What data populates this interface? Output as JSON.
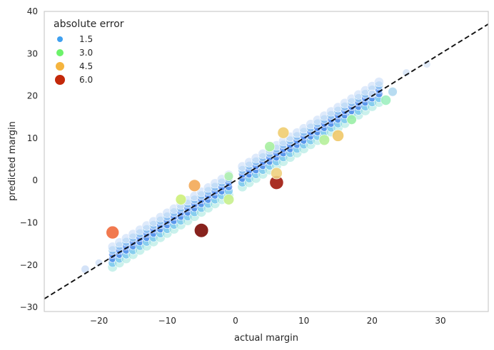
{
  "chart_data": {
    "type": "scatter",
    "title": "",
    "xlabel": "actual margin",
    "ylabel": "predicted margin",
    "xlim": [
      -28,
      37
    ],
    "ylim": [
      -31,
      40
    ],
    "x_ticks": [
      -20,
      -10,
      0,
      10,
      20,
      30
    ],
    "y_ticks": [
      -30,
      -20,
      -10,
      0,
      10,
      20,
      30,
      40
    ],
    "grid": false,
    "reference_line": {
      "style": "dashed",
      "color": "#000000",
      "slope": 1,
      "intercept": 0
    },
    "legend": {
      "title": "absolute error",
      "placement": "top-left",
      "entries": [
        {
          "label": "1.5",
          "value": 1.5,
          "color": "#3fa0f0"
        },
        {
          "label": "3.0",
          "value": 3.0,
          "color": "#6cf26a"
        },
        {
          "label": "4.5",
          "value": 4.5,
          "color": "#f5b43e"
        },
        {
          "label": "6.0",
          "value": 6.0,
          "color": "#c3280a"
        }
      ]
    },
    "outliers": [
      {
        "x": -18,
        "y": -12.3,
        "error": 5.7,
        "color": "#f06a3c"
      },
      {
        "x": -5,
        "y": -11.8,
        "error": 6.8,
        "color": "#7a0a04"
      },
      {
        "x": 6,
        "y": -0.5,
        "error": 6.5,
        "color": "#a0180c"
      },
      {
        "x": -6,
        "y": -1.2,
        "error": 4.8,
        "color": "#f3a957"
      },
      {
        "x": 7,
        "y": 11.3,
        "error": 4.3,
        "color": "#f0cd70"
      },
      {
        "x": 15,
        "y": 10.6,
        "error": 4.4,
        "color": "#f0c868"
      },
      {
        "x": 6,
        "y": 1.7,
        "error": 4.3,
        "color": "#f0d080"
      },
      {
        "x": -8,
        "y": -4.5,
        "error": 3.5,
        "color": "#cdf07a"
      },
      {
        "x": 5,
        "y": 8,
        "error": 3.0,
        "color": "#a8f0a0"
      },
      {
        "x": 13,
        "y": 9.6,
        "error": 3.4,
        "color": "#b6f09a"
      },
      {
        "x": 17,
        "y": 14.4,
        "error": 2.6,
        "color": "#9ef0a8"
      },
      {
        "x": -1,
        "y": -4.5,
        "error": 3.5,
        "color": "#c8f08c"
      },
      {
        "x": -1,
        "y": 1.0,
        "error": 2.0,
        "color": "#b0f0b0"
      },
      {
        "x": 22,
        "y": 19,
        "error": 3.0,
        "color": "#9ff0c0"
      },
      {
        "x": -22,
        "y": -21,
        "error": 1.0,
        "color": "#cfe0f7"
      },
      {
        "x": -20,
        "y": -19.5,
        "error": 0.5,
        "color": "#d5e3f7"
      },
      {
        "x": 28,
        "y": 27.5,
        "error": 0.5,
        "color": "#dde8f7"
      },
      {
        "x": 25,
        "y": 25.5,
        "error": 0.5,
        "color": "#d8e5f7"
      },
      {
        "x": 20,
        "y": 20.5,
        "error": 0.5,
        "color": "#c6dcf7"
      },
      {
        "x": 23,
        "y": 21,
        "error": 2.0,
        "color": "#b0d8f0"
      }
    ],
    "band": {
      "x_min": -18,
      "x_max": 21,
      "x_skip": [
        0
      ],
      "y_offsets": [
        -2.5,
        -1.5,
        -0.5,
        0.5,
        1.5,
        2.3
      ],
      "colors": [
        "#a6e8e0",
        "#5ab8f0",
        "#2f6fe6",
        "#3b7ff0",
        "#8fc8f0",
        "#c8dcf8"
      ]
    }
  }
}
